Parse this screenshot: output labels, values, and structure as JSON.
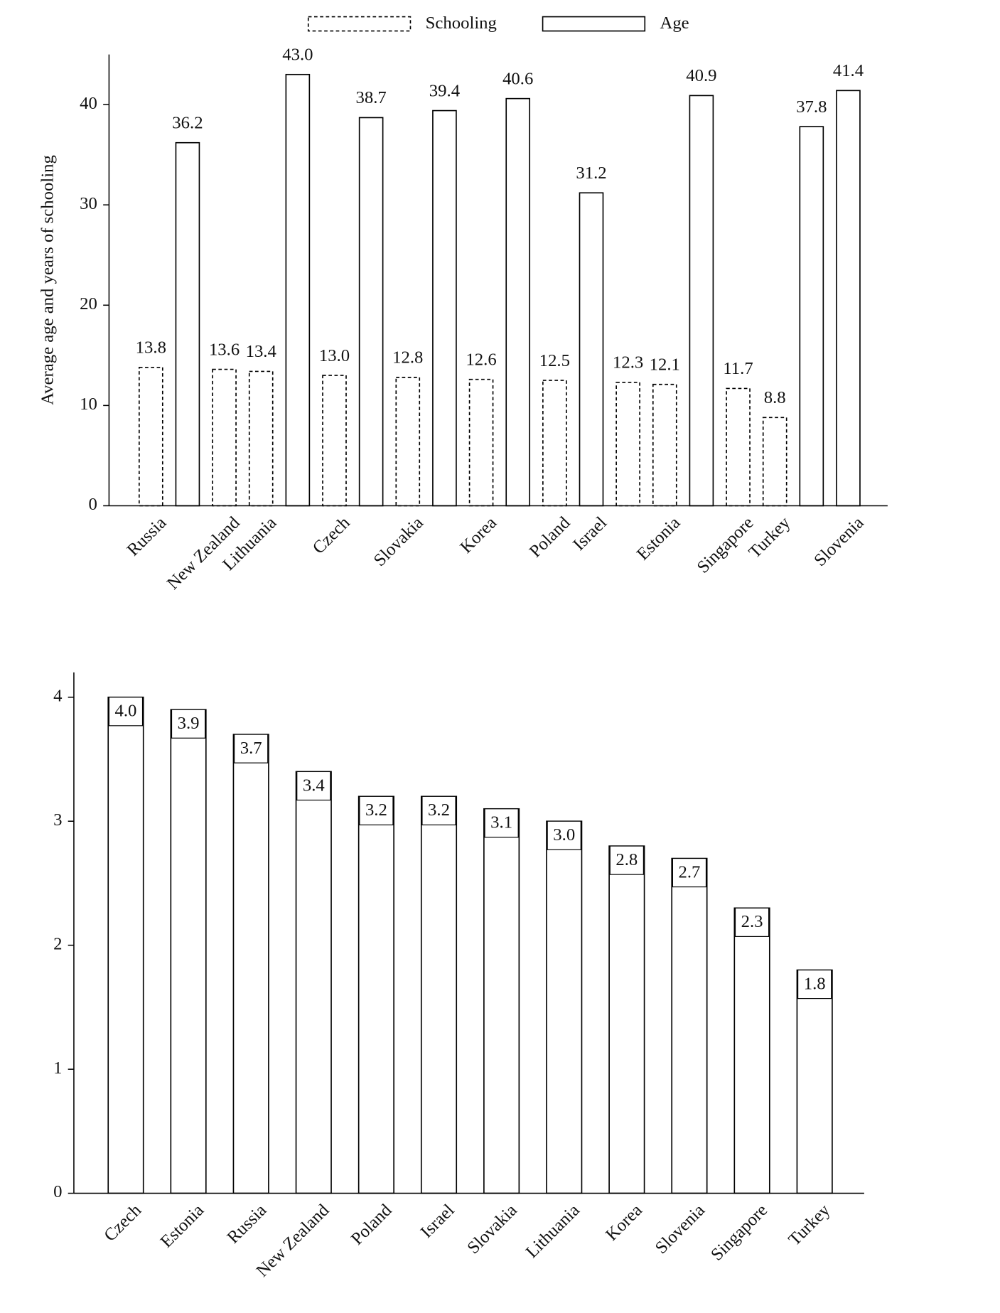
{
  "chart_data": [
    {
      "type": "bar",
      "y_label": "Average age and years of schooling",
      "categories": [
        "Russia",
        null,
        "New Zealand",
        "Lithuania",
        null,
        "Czech",
        null,
        "Slovakia",
        null,
        "Korea",
        null,
        "Poland",
        "Israel",
        null,
        "Estonia",
        null,
        "Singapore",
        "Turkey",
        null,
        "Slovenia"
      ],
      "series": [
        {
          "name": "Schooling",
          "color": "#000000",
          "line_style": "dashed",
          "values": [
            13.8,
            null,
            13.6,
            13.4,
            null,
            13.0,
            null,
            12.8,
            null,
            12.6,
            null,
            12.5,
            null,
            12.3,
            12.1,
            null,
            11.7,
            8.8,
            null,
            null
          ],
          "value_labels": [
            "13.8",
            null,
            "13.6",
            "13.4",
            null,
            "13.0",
            null,
            "12.8",
            null,
            "12.6",
            null,
            "12.5",
            null,
            "12.3",
            "12.1",
            null,
            "11.7",
            "8.8",
            null,
            null
          ]
        },
        {
          "name": "Age",
          "color": "#000000",
          "line_style": "solid",
          "values": [
            null,
            36.2,
            null,
            null,
            43.0,
            null,
            38.7,
            null,
            39.4,
            null,
            40.6,
            null,
            31.2,
            null,
            null,
            40.9,
            null,
            null,
            37.8,
            41.4
          ],
          "value_labels": [
            null,
            "36.2",
            null,
            null,
            "43.0",
            null,
            "38.7",
            null,
            "39.4",
            null,
            "40.6",
            null,
            "31.2",
            null,
            null,
            "40.9",
            null,
            null,
            "37.8",
            "41.4"
          ]
        }
      ],
      "ylim": [
        0,
        45
      ],
      "yticks": [
        0,
        10,
        20,
        30,
        40
      ],
      "legend": "top"
    },
    {
      "type": "bar",
      "categories": [
        "Czech",
        "Estonia",
        "Russia",
        "New Zealand",
        "Poland",
        "Israel",
        "Slovakia",
        "Lithuania",
        "Korea",
        "Slovenia",
        "Singapore",
        "Turkey"
      ],
      "series": [
        {
          "color": "#000000",
          "line_style": "solid",
          "values": [
            4.0,
            3.9,
            3.7,
            3.4,
            3.2,
            3.2,
            3.1,
            3.0,
            2.8,
            2.7,
            2.3,
            1.8
          ],
          "value_labels": [
            "4.0",
            "3.9",
            "3.7",
            "3.4",
            "3.2",
            "3.2",
            "3.1",
            "3.0",
            "2.8",
            "2.7",
            "2.3",
            "1.8"
          ]
        }
      ],
      "ylim": [
        0,
        4.2
      ],
      "yticks": [
        0,
        1,
        2,
        3,
        4
      ],
      "value_label_position": "inside"
    }
  ]
}
